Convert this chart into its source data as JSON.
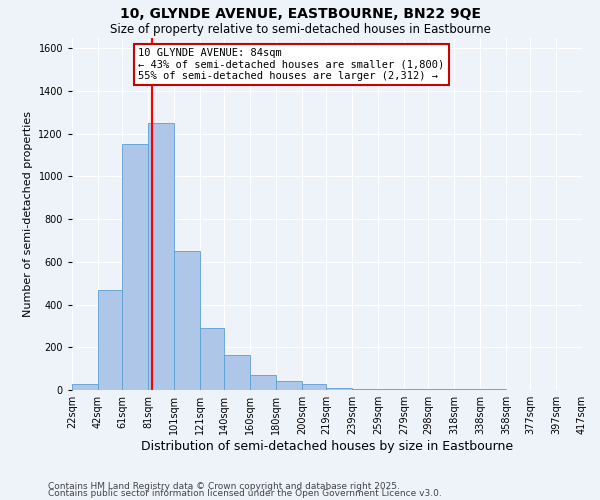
{
  "title1": "10, GLYNDE AVENUE, EASTBOURNE, BN22 9QE",
  "title2": "Size of property relative to semi-detached houses in Eastbourne",
  "xlabel": "Distribution of semi-detached houses by size in Eastbourne",
  "ylabel": "Number of semi-detached properties",
  "bar_edges": [
    22,
    42,
    61,
    81,
    101,
    121,
    140,
    160,
    180,
    200,
    219,
    239,
    259,
    279,
    298,
    318,
    338,
    358,
    377,
    397,
    417
  ],
  "bar_heights": [
    30,
    470,
    1150,
    1250,
    650,
    290,
    165,
    70,
    40,
    30,
    10,
    5,
    5,
    5,
    5,
    3,
    3,
    2,
    2,
    2
  ],
  "bar_color": "#aec6e8",
  "bar_edge_color": "#5a9fd4",
  "red_line_x": 84,
  "annotation_title": "10 GLYNDE AVENUE: 84sqm",
  "annotation_line1": "← 43% of semi-detached houses are smaller (1,800)",
  "annotation_line2": "55% of semi-detached houses are larger (2,312) →",
  "annotation_box_color": "#ffffff",
  "annotation_box_edge": "#cc0000",
  "ylim": [
    0,
    1650
  ],
  "footnote1": "Contains HM Land Registry data © Crown copyright and database right 2025.",
  "footnote2": "Contains public sector information licensed under the Open Government Licence v3.0.",
  "background_color": "#eef2f9",
  "grid_color": "#ffffff",
  "title1_fontsize": 10,
  "title2_fontsize": 8.5,
  "xlabel_fontsize": 9,
  "ylabel_fontsize": 8,
  "tick_fontsize": 7,
  "footnote_fontsize": 6.5,
  "annotation_fontsize": 7.5
}
